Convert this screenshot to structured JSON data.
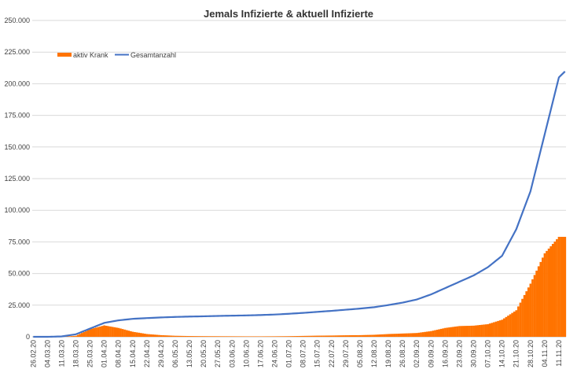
{
  "chart_data": {
    "type": "bar+line",
    "title": "Jemals Infizierte & aktuell Infizierte",
    "xlabel": "",
    "ylabel": "",
    "ylim": [
      0,
      250000
    ],
    "yticks": [
      0,
      25000,
      50000,
      75000,
      100000,
      125000,
      150000,
      175000,
      200000,
      225000,
      250000
    ],
    "ytick_labels": [
      "0",
      "25.000",
      "50.000",
      "75.000",
      "100.000",
      "125.000",
      "150.000",
      "175.000",
      "200.000",
      "225.000",
      "250.000"
    ],
    "xtick_labels": [
      "26.02.20",
      "04.03.20",
      "11.03.20",
      "18.03.20",
      "25.03.20",
      "01.04.20",
      "08.04.20",
      "15.04.20",
      "22.04.20",
      "29.04.20",
      "06.05.20",
      "13.05.20",
      "20.05.20",
      "27.05.20",
      "03.06.20",
      "10.06.20",
      "17.06.20",
      "24.06.20",
      "01.07.20",
      "08.07.20",
      "15.07.20",
      "22.07.20",
      "29.07.20",
      "05.08.20",
      "12.08.20",
      "19.08.20",
      "26.08.20",
      "02.09.20",
      "09.09.20",
      "16.09.20",
      "23.09.20",
      "30.09.20",
      "07.10.20",
      "14.10.20",
      "21.10.20",
      "28.10.20",
      "04.11.20",
      "11.11.20"
    ],
    "legend_position": "top-left",
    "grid": "horizontal",
    "series": [
      {
        "name": "aktiv Krank",
        "kind": "bar",
        "color": "#FF7300",
        "weekly_anchors": [
          0,
          0,
          0,
          800,
          6000,
          9000,
          7000,
          4000,
          2200,
          1300,
          800,
          600,
          500,
          450,
          400,
          350,
          350,
          400,
          500,
          700,
          900,
          1000,
          1200,
          1300,
          1600,
          2200,
          2600,
          3000,
          4500,
          7000,
          8500,
          8800,
          10000,
          13500,
          21000,
          42000,
          66000,
          79000
        ]
      },
      {
        "name": "Gesamtanzahl",
        "kind": "line",
        "color": "#4472C4",
        "weekly_anchors": [
          0,
          0,
          300,
          2000,
          6500,
          11000,
          13000,
          14200,
          14800,
          15300,
          15700,
          16000,
          16200,
          16500,
          16700,
          16900,
          17200,
          17600,
          18200,
          18900,
          19700,
          20500,
          21400,
          22300,
          23400,
          25100,
          27000,
          29500,
          33500,
          38500,
          43500,
          48500,
          55000,
          64000,
          85000,
          115000,
          160000,
          205000
        ],
        "end_value": 216000
      }
    ]
  }
}
